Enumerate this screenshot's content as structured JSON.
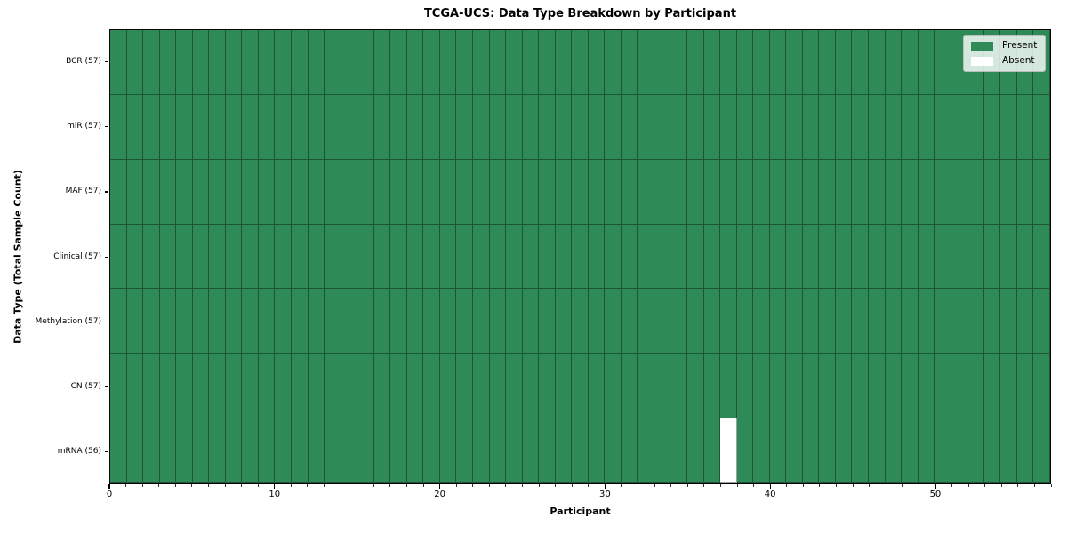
{
  "figure": {
    "title": "TCGA-UCS: Data Type Breakdown by Participant",
    "xlabel": "Participant",
    "ylabel": "Data Type (Total Sample Count)"
  },
  "legend": {
    "entries": [
      {
        "label": "Present",
        "color": "#2e8b57"
      },
      {
        "label": "Absent",
        "color": "#ffffff"
      }
    ]
  },
  "chart_data": {
    "type": "heatmap",
    "title": "TCGA-UCS: Data Type Breakdown by Participant",
    "xlabel": "Participant",
    "ylabel": "Data Type (Total Sample Count)",
    "x_ticks": [
      0,
      10,
      20,
      30,
      40,
      50
    ],
    "x_range": [
      0,
      57
    ],
    "n_participants": 57,
    "categories": [
      "BCR (57)",
      "miR (57)",
      "MAF (57)",
      "Clinical (57)",
      "Methylation (57)",
      "CN (57)",
      "mRNA (56)"
    ],
    "rows": [
      {
        "label": "BCR (57)",
        "data_type": "BCR",
        "total_samples": 57,
        "absent_participant_indices": []
      },
      {
        "label": "miR (57)",
        "data_type": "miR",
        "total_samples": 57,
        "absent_participant_indices": []
      },
      {
        "label": "MAF (57)",
        "data_type": "MAF",
        "total_samples": 57,
        "absent_participant_indices": []
      },
      {
        "label": "Clinical (57)",
        "data_type": "Clinical",
        "total_samples": 57,
        "absent_participant_indices": []
      },
      {
        "label": "Methylation (57)",
        "data_type": "Methylation",
        "total_samples": 57,
        "absent_participant_indices": []
      },
      {
        "label": "CN (57)",
        "data_type": "CN",
        "total_samples": 57,
        "absent_participant_indices": []
      },
      {
        "label": "mRNA (56)",
        "data_type": "mRNA",
        "total_samples": 56,
        "absent_participant_indices": [
          37
        ]
      }
    ],
    "legend_position": "upper right",
    "grid": true,
    "colors": {
      "present": "#2e8b57",
      "absent": "#ffffff",
      "cell_border": "rgba(0,0,0,0.38)",
      "spine": "#000000"
    }
  }
}
